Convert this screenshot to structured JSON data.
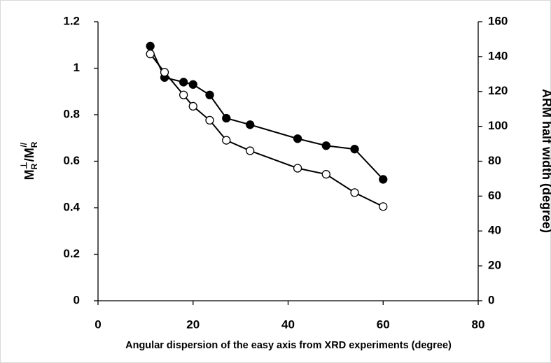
{
  "chart_data": {
    "type": "line",
    "xlabel": "Angular dispersion of the easy axis from XRD experiments (degree)",
    "ylabel": [
      "M",
      "R",
      "⊥",
      "/M",
      "R",
      "//"
    ],
    "y2label": "ARM half width (degree)",
    "xlim": [
      0,
      80
    ],
    "xticks": [
      0,
      20,
      40,
      60,
      80
    ],
    "ylim": [
      0,
      1.2
    ],
    "yticks": [
      0,
      0.2,
      0.4,
      0.6,
      0.8,
      1,
      1.2
    ],
    "y2lim": [
      0,
      160
    ],
    "y2ticks": [
      0,
      20,
      40,
      60,
      80,
      100,
      120,
      140,
      160
    ],
    "grid": false,
    "series": [
      {
        "color": "#000000",
        "marker": "filled",
        "x": [
          11,
          14,
          18,
          20,
          23.5,
          27,
          32,
          42,
          48,
          54,
          60
        ],
        "values": [
          1.095,
          0.96,
          0.94,
          0.93,
          0.885,
          0.785,
          0.757,
          0.697,
          0.667,
          0.652,
          0.522
        ]
      },
      {
        "color": "#000000",
        "marker": "open",
        "axis": "y2",
        "x": [
          11,
          14,
          18,
          20,
          23.5,
          27,
          32,
          42,
          48,
          54,
          60
        ],
        "values": [
          141.5,
          131,
          118,
          111.5,
          103.5,
          92,
          86,
          76,
          72.5,
          62,
          54
        ]
      }
    ]
  }
}
